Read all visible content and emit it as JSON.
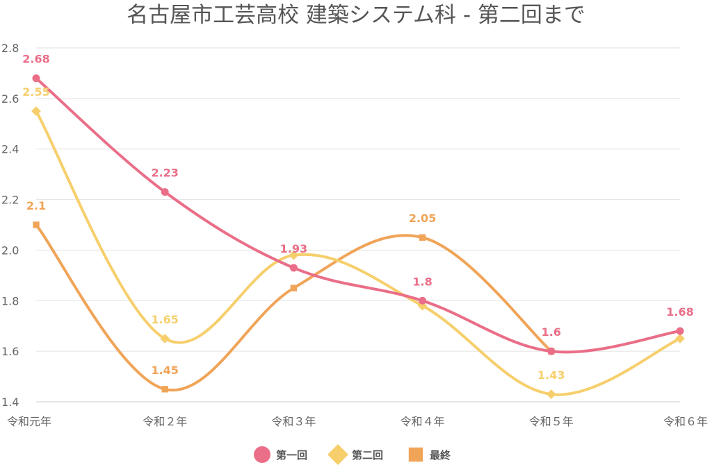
{
  "chart_data": {
    "type": "line",
    "title": "名古屋市工芸高校 建築システム科 - 第二回まで",
    "xlabel": "",
    "ylabel": "",
    "categories": [
      "令和元年",
      "令和２年",
      "令和３年",
      "令和４年",
      "令和５年",
      "令和６年"
    ],
    "ylim": [
      1.4,
      2.8
    ],
    "yticks": [
      "1.4",
      "1.6",
      "1.8",
      "2.0",
      "2.2",
      "2.4",
      "2.6",
      "2.8"
    ],
    "grid": true,
    "legend_position": "bottom",
    "series": [
      {
        "name": "第一回",
        "color": "#ea6e88",
        "marker": "circle",
        "values": [
          2.68,
          2.23,
          1.93,
          1.8,
          1.6,
          1.68
        ],
        "labels": [
          "2.68",
          "2.23",
          "1.93",
          "1.8",
          "1.6",
          "1.68"
        ]
      },
      {
        "name": "第二回",
        "color": "#f6cf6c",
        "marker": "diamond",
        "values": [
          2.55,
          1.65,
          1.98,
          1.78,
          1.43,
          1.65
        ],
        "labels": [
          "2.55",
          "1.65",
          "",
          "",
          "1.43",
          ""
        ]
      },
      {
        "name": "最終",
        "color": "#f0a458",
        "marker": "square",
        "values": [
          2.1,
          1.45,
          1.85,
          2.05,
          1.6,
          null
        ],
        "labels": [
          "2.1",
          "1.45",
          "",
          "2.05",
          "",
          ""
        ]
      }
    ]
  }
}
